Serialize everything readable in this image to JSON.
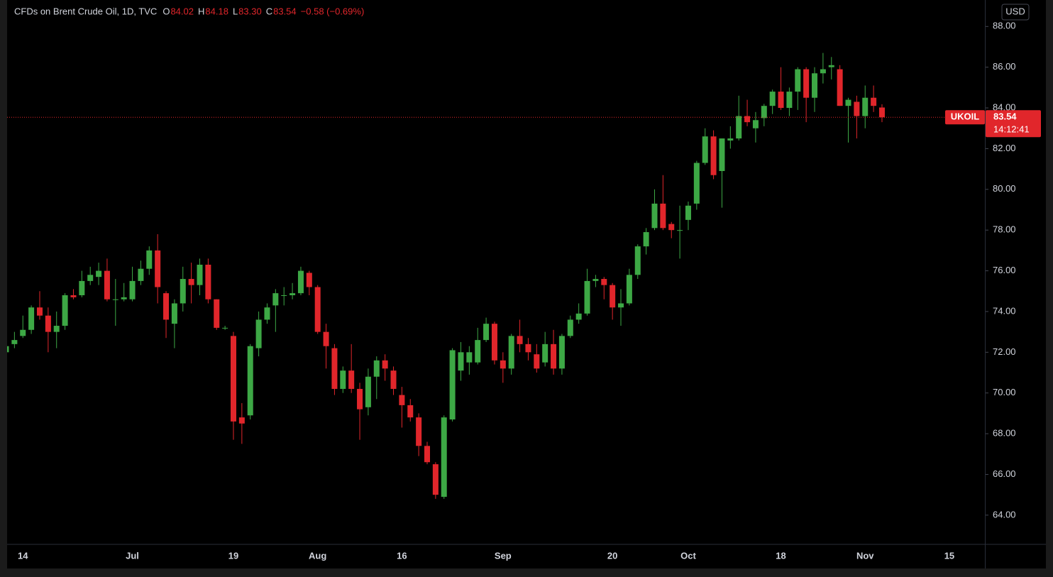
{
  "chart_data": {
    "type": "candlestick",
    "title": "CFDs on Brent Crude Oil, 1D, TVC",
    "ohlc_legend": [
      {
        "label": "O",
        "value": "84.02"
      },
      {
        "label": "H",
        "value": "84.18"
      },
      {
        "label": "L",
        "value": "83.30"
      },
      {
        "label": "C",
        "value": "83.54"
      }
    ],
    "change": "−0.58 (−0.69%)",
    "currency": "USD",
    "symbol": "UKOIL",
    "last_price": "83.54",
    "countdown": "14:12:41",
    "up_color": "#3da845",
    "down_color": "#e1262b",
    "categories": [
      null,
      null,
      "14",
      null,
      null,
      null,
      null,
      null,
      null,
      null,
      null,
      null,
      null,
      null,
      null,
      "Jul",
      null,
      null,
      null,
      null,
      null,
      null,
      null,
      null,
      null,
      null,
      null,
      "19",
      null,
      null,
      null,
      null,
      null,
      null,
      null,
      null,
      null,
      "Aug",
      null,
      null,
      null,
      null,
      null,
      null,
      null,
      null,
      null,
      "16",
      null,
      null,
      null,
      null,
      null,
      null,
      null,
      null,
      null,
      null,
      null,
      "Sep",
      null,
      null,
      null,
      null,
      null,
      null,
      null,
      null,
      null,
      null,
      null,
      null,
      "20",
      null,
      null,
      null,
      null,
      null,
      null,
      null,
      null,
      "Oct",
      null,
      null,
      null,
      null,
      null,
      null,
      null,
      null,
      null,
      null,
      "18",
      null,
      null,
      null,
      null,
      null,
      null,
      null,
      null,
      null,
      "Nov",
      null,
      null,
      null,
      null,
      null,
      null,
      null,
      null,
      null,
      "15",
      null,
      null,
      null
    ],
    "open": [
      72.0,
      72.4,
      72.8,
      73.1,
      74.2,
      73.8,
      73.0,
      73.3,
      74.8,
      74.8,
      75.5,
      75.7,
      76.0,
      74.6,
      74.6,
      74.6,
      75.5,
      76.1,
      77.0,
      74.9,
      73.4,
      74.4,
      75.6,
      75.3,
      76.3,
      74.6,
      73.2,
      72.8,
      68.8,
      68.9,
      72.2,
      73.6,
      74.3,
      74.8,
      74.8,
      74.9,
      75.9,
      75.2,
      73.0,
      72.2,
      70.2,
      71.1,
      70.2,
      69.3,
      70.8,
      71.6,
      71.1,
      69.9,
      69.4,
      68.8,
      67.4,
      66.5,
      64.9,
      68.7,
      71.1,
      71.5,
      71.5,
      72.6,
      73.4,
      71.6,
      71.2,
      72.8,
      72.4,
      71.9,
      71.5,
      72.4,
      71.2,
      72.8,
      73.6,
      73.9,
      75.5,
      75.6,
      75.3,
      74.2,
      74.4,
      75.8,
      77.2,
      78.1,
      79.3,
      78.3,
      78.0,
      78.5,
      79.3,
      81.3,
      82.6,
      80.9,
      82.4,
      82.5,
      83.6,
      83.0,
      83.5,
      84.1,
      84.8,
      84.0,
      84.8,
      85.9,
      84.5,
      85.7,
      86.0,
      85.9,
      84.1,
      84.3,
      83.6,
      84.5,
      84.02,
      null,
      null,
      null,
      null,
      null,
      null,
      null,
      null,
      null,
      null,
      null
    ],
    "high": [
      72.5,
      73.0,
      73.8,
      74.3,
      75.0,
      74.2,
      74.0,
      74.9,
      75.1,
      76.0,
      76.2,
      76.4,
      76.6,
      75.6,
      75.4,
      76.2,
      76.5,
      77.2,
      77.8,
      75.0,
      74.6,
      76.2,
      76.4,
      76.6,
      76.6,
      74.6,
      73.3,
      73.0,
      69.5,
      72.4,
      74.0,
      74.4,
      75.1,
      75.2,
      75.4,
      76.2,
      76.0,
      75.3,
      73.4,
      72.4,
      71.3,
      72.4,
      70.5,
      71.2,
      71.8,
      71.9,
      71.3,
      70.3,
      69.7,
      69.0,
      67.6,
      66.6,
      68.9,
      72.2,
      72.5,
      72.3,
      73.2,
      73.7,
      73.5,
      72.0,
      72.9,
      73.6,
      72.7,
      72.4,
      73.0,
      73.1,
      72.9,
      73.8,
      74.4,
      76.1,
      75.8,
      75.7,
      75.4,
      75.1,
      76.1,
      77.3,
      78.1,
      80.0,
      80.7,
      78.4,
      79.2,
      79.4,
      81.4,
      83.0,
      82.9,
      82.5,
      83.1,
      84.6,
      84.4,
      83.8,
      84.2,
      84.9,
      86.0,
      85.0,
      86.0,
      86.0,
      86.0,
      86.7,
      86.5,
      86.1,
      84.5,
      84.6,
      85.1,
      85.1,
      84.18,
      null,
      null,
      null,
      null,
      null,
      null,
      null,
      null,
      null,
      null,
      null
    ],
    "low": [
      71.9,
      72.2,
      72.7,
      72.9,
      73.6,
      72.0,
      72.2,
      73.1,
      74.6,
      74.7,
      75.3,
      75.3,
      74.5,
      73.3,
      74.5,
      74.5,
      75.3,
      75.8,
      74.4,
      72.7,
      72.2,
      74.0,
      74.4,
      74.8,
      74.4,
      73.1,
      73.1,
      67.7,
      67.5,
      68.7,
      71.8,
      73.4,
      73.0,
      74.3,
      74.6,
      74.8,
      74.8,
      72.9,
      71.2,
      69.9,
      70.0,
      70.0,
      67.7,
      68.9,
      69.7,
      70.6,
      69.9,
      68.3,
      68.6,
      66.9,
      66.5,
      64.8,
      64.8,
      68.6,
      70.6,
      70.9,
      71.4,
      72.5,
      71.4,
      70.5,
      70.9,
      72.0,
      71.6,
      71.0,
      71.3,
      70.9,
      70.9,
      72.7,
      73.4,
      73.8,
      75.2,
      74.6,
      73.6,
      73.3,
      74.3,
      75.6,
      76.8,
      78.0,
      78.0,
      77.6,
      76.6,
      78.0,
      79.0,
      81.2,
      80.5,
      79.1,
      82.0,
      82.4,
      83.1,
      82.3,
      83.1,
      83.7,
      83.9,
      83.6,
      83.9,
      83.3,
      83.8,
      85.2,
      85.4,
      84.1,
      82.3,
      82.5,
      83.0,
      83.8,
      83.3,
      null,
      null,
      null,
      null,
      null,
      null,
      null,
      null,
      null,
      null,
      null
    ],
    "close": [
      72.3,
      72.6,
      73.1,
      74.2,
      73.8,
      73.0,
      73.3,
      74.8,
      74.7,
      75.5,
      75.8,
      76.0,
      74.6,
      74.6,
      74.7,
      75.5,
      76.1,
      77.0,
      75.2,
      73.6,
      74.4,
      75.6,
      75.3,
      76.3,
      74.6,
      73.2,
      73.2,
      68.6,
      68.5,
      72.3,
      73.6,
      74.2,
      74.9,
      74.8,
      74.9,
      76.0,
      75.2,
      73.0,
      72.3,
      70.2,
      71.1,
      70.2,
      69.2,
      70.8,
      71.6,
      71.2,
      70.2,
      69.4,
      68.8,
      67.4,
      66.6,
      65.0,
      68.8,
      72.1,
      72.0,
      72.0,
      72.6,
      73.4,
      71.6,
      71.2,
      72.8,
      72.4,
      72.0,
      71.2,
      72.4,
      71.2,
      72.8,
      73.6,
      73.9,
      75.5,
      75.6,
      75.3,
      74.2,
      74.4,
      75.8,
      77.2,
      77.9,
      79.3,
      78.1,
      78.0,
      78.0,
      79.2,
      81.3,
      82.6,
      80.7,
      82.5,
      82.5,
      83.6,
      83.3,
      83.4,
      84.1,
      84.8,
      84.0,
      84.8,
      85.9,
      84.5,
      85.7,
      85.9,
      86.1,
      84.1,
      84.4,
      83.6,
      84.5,
      84.1,
      83.54,
      null,
      null,
      null,
      null,
      null,
      null,
      null,
      null,
      null,
      null,
      null
    ],
    "ylim": [
      62.6,
      89.3
    ],
    "yticks": [
      {
        "value": 64,
        "label": "64.00"
      },
      {
        "value": 66,
        "label": "66.00"
      },
      {
        "value": 68,
        "label": "68.00"
      },
      {
        "value": 70,
        "label": "70.00"
      },
      {
        "value": 72,
        "label": "72.00"
      },
      {
        "value": 74,
        "label": "74.00"
      },
      {
        "value": 76,
        "label": "76.00"
      },
      {
        "value": 78,
        "label": "78.00"
      },
      {
        "value": 80,
        "label": "80.00"
      },
      {
        "value": 82,
        "label": "82.00"
      },
      {
        "value": 84,
        "label": "84.00"
      },
      {
        "value": 86,
        "label": "86.00"
      },
      {
        "value": 88,
        "label": "88.00"
      }
    ]
  }
}
